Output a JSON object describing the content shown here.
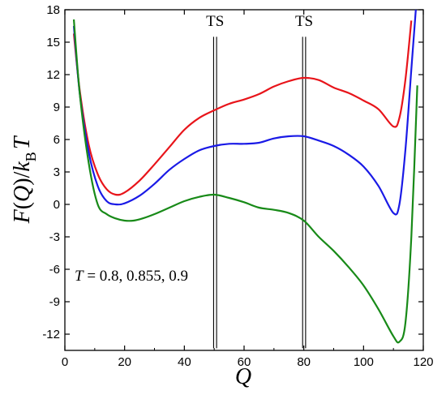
{
  "chart_data": {
    "type": "line",
    "title": "",
    "ylabel_parts": {
      "f": "F",
      "q": "Q",
      "slash": ")/",
      "k": "k",
      "sub": "B",
      "t": "T",
      "open": "("
    },
    "xlabel": "Q",
    "xlim": [
      0,
      120
    ],
    "ylim": [
      -13.5,
      18
    ],
    "x_ticks": [
      0,
      20,
      40,
      60,
      80,
      100,
      120
    ],
    "y_ticks": [
      18,
      15,
      12,
      9,
      6,
      3,
      0,
      -3,
      -6,
      -9,
      -12
    ],
    "grid": false,
    "annotation": {
      "text": "T = 0.8, 0.855, 0.9",
      "var": "T",
      "rest": " = 0.8, 0.855, 0.9"
    },
    "transition_states": [
      {
        "label": "TS",
        "lines": [
          49.8,
          50.8
        ]
      },
      {
        "label": "TS",
        "lines": [
          79.6,
          80.6
        ]
      }
    ],
    "series": [
      {
        "color": "#e8141a",
        "x": [
          3,
          5,
          8,
          11,
          14,
          17,
          20,
          25,
          30,
          35,
          40,
          45,
          50,
          55,
          60,
          65,
          70,
          75,
          80,
          85,
          90,
          95,
          100,
          105,
          110,
          112,
          114,
          116
        ],
        "y": [
          15.8,
          10.5,
          5.5,
          2.8,
          1.4,
          0.9,
          1.1,
          2.2,
          3.7,
          5.3,
          6.9,
          8.0,
          8.7,
          9.3,
          9.7,
          10.2,
          10.9,
          11.4,
          11.7,
          11.5,
          10.8,
          10.3,
          9.6,
          8.8,
          7.2,
          8.0,
          11.5,
          17.0
        ]
      },
      {
        "color": "#1a1ae6",
        "x": [
          3,
          5,
          8,
          11,
          14,
          17,
          20,
          25,
          30,
          35,
          40,
          45,
          50,
          55,
          60,
          65,
          70,
          75,
          80,
          85,
          90,
          95,
          100,
          105,
          110,
          112,
          114,
          116,
          117.5
        ],
        "y": [
          16.5,
          10.2,
          4.8,
          1.7,
          0.3,
          0.0,
          0.1,
          0.8,
          1.9,
          3.2,
          4.2,
          5.0,
          5.4,
          5.6,
          5.6,
          5.7,
          6.1,
          6.3,
          6.3,
          5.9,
          5.4,
          4.6,
          3.5,
          1.7,
          -0.8,
          0.0,
          5.0,
          12.5,
          18.0
        ]
      },
      {
        "color": "#188a18",
        "x": [
          3,
          5,
          8,
          11,
          14,
          17,
          20,
          23,
          26,
          30,
          35,
          40,
          45,
          50,
          55,
          60,
          65,
          70,
          75,
          80,
          85,
          90,
          95,
          100,
          105,
          110,
          112,
          114,
          116,
          118
        ],
        "y": [
          17.1,
          10.2,
          3.8,
          0.0,
          -0.9,
          -1.3,
          -1.5,
          -1.5,
          -1.3,
          -0.9,
          -0.3,
          0.3,
          0.7,
          0.9,
          0.6,
          0.2,
          -0.3,
          -0.5,
          -0.8,
          -1.5,
          -3.0,
          -4.3,
          -5.8,
          -7.5,
          -9.7,
          -12.2,
          -12.7,
          -11.0,
          -3.0,
          11.0
        ]
      }
    ]
  }
}
